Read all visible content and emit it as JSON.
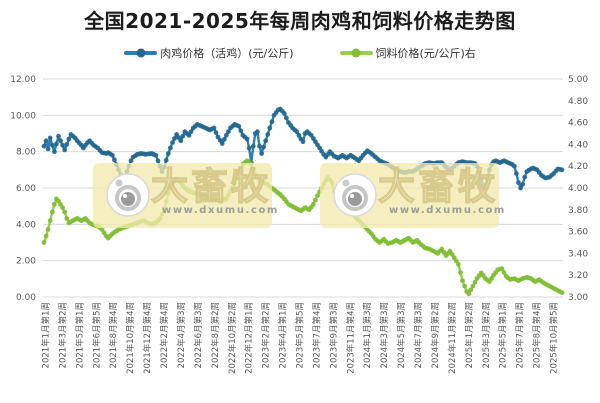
{
  "title": "全国2021-2025年每周肉鸡和饲料价格走势图",
  "legend": {
    "items": [
      {
        "label": "肉鸡价格（活鸡）(元/公斤)",
        "color": "#2E7FAE",
        "marker_color": "#25688F"
      },
      {
        "label": "饲料价格(元/公斤)右",
        "color": "#97CE4F",
        "marker_color": "#7FBE33"
      }
    ]
  },
  "watermark": {
    "brand": "大畜牧",
    "url": "www.dxumu.com"
  },
  "chart_data": {
    "type": "line",
    "title": "全国2021-2025年每周肉鸡和饲料价格走势图",
    "x_unit": "week",
    "weeks": 251,
    "grid": true,
    "legend_position": "top",
    "x_tick_labels": [
      "2021年1月第1周",
      "2021年3月第2周",
      "2021年5月第1周",
      "2021年6月第5周",
      "2021年8月第4周",
      "2021年10月第4周",
      "2021年12月第4周",
      "2022年2月第4周",
      "2022年4月第3周",
      "2022年6月第3周",
      "2022年8月第2周",
      "2022年10月第2周",
      "2022年12月第1周",
      "2023年2月第2周",
      "2023年4月第1周",
      "2023年5月第5周",
      "2023年7月第4周",
      "2023年9月第3周",
      "2023年11月第4周",
      "2024年1月第3周",
      "2024年3月第3周",
      "2024年5月第3周",
      "2024年7月第3周",
      "2024年9月第2周",
      "2024年11月第2周",
      "2025年1月第2周",
      "2025年3月第2周",
      "2025年5月第1周",
      "2025年7月第1周",
      "2025年8月第4周",
      "2025年10月第5周"
    ],
    "left_axis": {
      "min": 0,
      "max": 12,
      "step": 2,
      "tick_labels": [
        "12.00",
        "10.00",
        "8.00",
        "6.00",
        "4.00",
        "2.00",
        "0.00"
      ]
    },
    "right_axis": {
      "min": 3,
      "max": 5,
      "step": 0.2,
      "tick_labels": [
        "5.00",
        "4.80",
        "4.60",
        "4.40",
        "4.20",
        "4.00",
        "3.80",
        "3.60",
        "3.40",
        "3.20",
        "3.00"
      ]
    },
    "series": [
      {
        "name": "肉鸡价格（活鸡）(元/公斤)",
        "axis": "left",
        "color": "#2E7FAE",
        "marker_color": "#25688F",
        "anchors": [
          [
            0,
            8.3
          ],
          [
            1,
            8.6
          ],
          [
            2,
            8.15
          ],
          [
            3,
            8.75
          ],
          [
            4,
            8.35
          ],
          [
            5,
            8.0
          ],
          [
            7,
            8.85
          ],
          [
            9,
            8.35
          ],
          [
            10,
            8.1
          ],
          [
            12,
            8.7
          ],
          [
            13,
            8.95
          ],
          [
            15,
            8.75
          ],
          [
            16,
            8.6
          ],
          [
            18,
            8.35
          ],
          [
            19,
            8.2
          ],
          [
            21,
            8.5
          ],
          [
            22,
            8.6
          ],
          [
            24,
            8.35
          ],
          [
            26,
            8.2
          ],
          [
            28,
            7.95
          ],
          [
            30,
            7.9
          ],
          [
            31,
            7.95
          ],
          [
            33,
            7.8
          ],
          [
            34,
            7.55
          ],
          [
            36,
            7.0
          ],
          [
            38,
            6.45
          ],
          [
            39,
            6.55
          ],
          [
            40,
            6.9
          ],
          [
            42,
            7.5
          ],
          [
            43,
            7.7
          ],
          [
            45,
            7.85
          ],
          [
            47,
            7.9
          ],
          [
            49,
            7.85
          ],
          [
            52,
            7.9
          ],
          [
            54,
            7.8
          ],
          [
            55,
            7.5
          ],
          [
            57,
            6.9
          ],
          [
            58,
            7.15
          ],
          [
            60,
            7.9
          ],
          [
            62,
            8.5
          ],
          [
            64,
            8.95
          ],
          [
            66,
            8.6
          ],
          [
            68,
            9.1
          ],
          [
            70,
            8.9
          ],
          [
            72,
            9.3
          ],
          [
            74,
            9.5
          ],
          [
            76,
            9.4
          ],
          [
            78,
            9.3
          ],
          [
            80,
            9.2
          ],
          [
            82,
            9.3
          ],
          [
            84,
            8.8
          ],
          [
            86,
            8.45
          ],
          [
            88,
            8.9
          ],
          [
            90,
            9.3
          ],
          [
            92,
            9.5
          ],
          [
            94,
            9.4
          ],
          [
            96,
            8.9
          ],
          [
            98,
            8.7
          ],
          [
            99,
            8.2
          ],
          [
            100,
            7.4
          ],
          [
            101,
            8.3
          ],
          [
            102,
            9.0
          ],
          [
            103,
            9.1
          ],
          [
            104,
            8.3
          ],
          [
            105,
            7.9
          ],
          [
            107,
            8.6
          ],
          [
            109,
            9.3
          ],
          [
            111,
            10.0
          ],
          [
            113,
            10.3
          ],
          [
            114,
            10.35
          ],
          [
            116,
            10.1
          ],
          [
            118,
            9.6
          ],
          [
            120,
            9.3
          ],
          [
            122,
            9.1
          ],
          [
            124,
            8.7
          ],
          [
            125,
            8.55
          ],
          [
            126,
            9.0
          ],
          [
            127,
            9.1
          ],
          [
            129,
            8.9
          ],
          [
            131,
            8.55
          ],
          [
            133,
            8.2
          ],
          [
            135,
            7.85
          ],
          [
            136,
            7.7
          ],
          [
            138,
            8.0
          ],
          [
            140,
            7.75
          ],
          [
            142,
            7.65
          ],
          [
            144,
            7.8
          ],
          [
            146,
            7.65
          ],
          [
            148,
            7.8
          ],
          [
            150,
            7.65
          ],
          [
            152,
            7.5
          ],
          [
            154,
            7.8
          ],
          [
            156,
            8.05
          ],
          [
            158,
            7.9
          ],
          [
            160,
            7.7
          ],
          [
            162,
            7.5
          ],
          [
            164,
            7.4
          ],
          [
            166,
            7.3
          ],
          [
            168,
            7.15
          ],
          [
            170,
            7.0
          ],
          [
            172,
            6.9
          ],
          [
            174,
            6.85
          ],
          [
            176,
            6.9
          ],
          [
            178,
            6.9
          ],
          [
            180,
            7.05
          ],
          [
            182,
            7.2
          ],
          [
            184,
            7.35
          ],
          [
            186,
            7.4
          ],
          [
            188,
            7.35
          ],
          [
            190,
            7.4
          ],
          [
            192,
            7.4
          ],
          [
            194,
            7.15
          ],
          [
            196,
            7.0
          ],
          [
            198,
            7.2
          ],
          [
            200,
            7.4
          ],
          [
            202,
            7.45
          ],
          [
            204,
            7.4
          ],
          [
            206,
            7.4
          ],
          [
            208,
            7.35
          ],
          [
            209,
            7.2
          ],
          [
            210,
            6.9
          ],
          [
            211,
            6.5
          ],
          [
            212,
            6.15
          ],
          [
            213,
            6.0
          ],
          [
            214,
            6.5
          ],
          [
            215,
            7.0
          ],
          [
            216,
            7.3
          ],
          [
            217,
            7.45
          ],
          [
            218,
            7.5
          ],
          [
            220,
            7.4
          ],
          [
            222,
            7.5
          ],
          [
            224,
            7.4
          ],
          [
            226,
            7.3
          ],
          [
            227,
            7.2
          ],
          [
            228,
            6.8
          ],
          [
            229,
            6.3
          ],
          [
            230,
            6.0
          ],
          [
            231,
            6.2
          ],
          [
            232,
            6.6
          ],
          [
            233,
            6.9
          ],
          [
            235,
            7.05
          ],
          [
            236,
            7.1
          ],
          [
            238,
            7.0
          ],
          [
            240,
            6.7
          ],
          [
            242,
            6.55
          ],
          [
            244,
            6.6
          ],
          [
            246,
            6.8
          ],
          [
            248,
            7.05
          ],
          [
            250,
            7.0
          ]
        ]
      },
      {
        "name": "饲料价格(元/公斤)右",
        "axis": "right",
        "color": "#97CE4F",
        "marker_color": "#7FBE33",
        "anchors": [
          [
            0,
            3.5
          ],
          [
            1,
            3.56
          ],
          [
            2,
            3.62
          ],
          [
            3,
            3.7
          ],
          [
            4,
            3.78
          ],
          [
            5,
            3.85
          ],
          [
            6,
            3.9
          ],
          [
            7,
            3.88
          ],
          [
            9,
            3.82
          ],
          [
            10,
            3.78
          ],
          [
            11,
            3.72
          ],
          [
            12,
            3.68
          ],
          [
            14,
            3.7
          ],
          [
            16,
            3.72
          ],
          [
            18,
            3.7
          ],
          [
            20,
            3.72
          ],
          [
            22,
            3.68
          ],
          [
            24,
            3.66
          ],
          [
            26,
            3.65
          ],
          [
            28,
            3.62
          ],
          [
            30,
            3.56
          ],
          [
            31,
            3.54
          ],
          [
            33,
            3.58
          ],
          [
            36,
            3.62
          ],
          [
            39,
            3.64
          ],
          [
            42,
            3.66
          ],
          [
            45,
            3.68
          ],
          [
            48,
            3.7
          ],
          [
            50,
            3.68
          ],
          [
            52,
            3.67
          ],
          [
            54,
            3.68
          ],
          [
            56,
            3.72
          ],
          [
            58,
            3.8
          ],
          [
            60,
            3.95
          ],
          [
            62,
            4.05
          ],
          [
            64,
            4.08
          ],
          [
            66,
            4.05
          ],
          [
            68,
            4.0
          ],
          [
            70,
            3.97
          ],
          [
            73,
            3.95
          ],
          [
            76,
            3.93
          ],
          [
            79,
            3.91
          ],
          [
            82,
            3.9
          ],
          [
            85,
            3.89
          ],
          [
            88,
            3.9
          ],
          [
            90,
            3.97
          ],
          [
            92,
            4.04
          ],
          [
            94,
            4.14
          ],
          [
            96,
            4.22
          ],
          [
            98,
            4.25
          ],
          [
            100,
            4.22
          ],
          [
            102,
            4.12
          ],
          [
            104,
            4.07
          ],
          [
            106,
            4.05
          ],
          [
            108,
            4.03
          ],
          [
            110,
            4.0
          ],
          [
            112,
            3.97
          ],
          [
            114,
            3.94
          ],
          [
            116,
            3.9
          ],
          [
            118,
            3.85
          ],
          [
            120,
            3.83
          ],
          [
            122,
            3.81
          ],
          [
            124,
            3.79
          ],
          [
            126,
            3.82
          ],
          [
            128,
            3.8
          ],
          [
            130,
            3.85
          ],
          [
            132,
            3.93
          ],
          [
            134,
            4.0
          ],
          [
            136,
            4.07
          ],
          [
            137,
            4.1
          ],
          [
            139,
            4.05
          ],
          [
            140,
            3.97
          ],
          [
            142,
            3.93
          ],
          [
            144,
            3.9
          ],
          [
            146,
            3.83
          ],
          [
            148,
            3.79
          ],
          [
            150,
            3.74
          ],
          [
            152,
            3.7
          ],
          [
            154,
            3.66
          ],
          [
            156,
            3.62
          ],
          [
            158,
            3.58
          ],
          [
            160,
            3.53
          ],
          [
            162,
            3.5
          ],
          [
            164,
            3.53
          ],
          [
            166,
            3.49
          ],
          [
            168,
            3.5
          ],
          [
            170,
            3.52
          ],
          [
            172,
            3.5
          ],
          [
            174,
            3.52
          ],
          [
            176,
            3.54
          ],
          [
            178,
            3.5
          ],
          [
            180,
            3.52
          ],
          [
            182,
            3.48
          ],
          [
            184,
            3.45
          ],
          [
            186,
            3.44
          ],
          [
            188,
            3.42
          ],
          [
            190,
            3.4
          ],
          [
            192,
            3.44
          ],
          [
            194,
            3.38
          ],
          [
            196,
            3.42
          ],
          [
            198,
            3.36
          ],
          [
            200,
            3.3
          ],
          [
            202,
            3.15
          ],
          [
            204,
            3.05
          ],
          [
            205,
            3.03
          ],
          [
            207,
            3.1
          ],
          [
            209,
            3.17
          ],
          [
            211,
            3.22
          ],
          [
            213,
            3.17
          ],
          [
            215,
            3.14
          ],
          [
            217,
            3.2
          ],
          [
            219,
            3.25
          ],
          [
            221,
            3.26
          ],
          [
            223,
            3.19
          ],
          [
            225,
            3.16
          ],
          [
            227,
            3.17
          ],
          [
            229,
            3.15
          ],
          [
            231,
            3.17
          ],
          [
            233,
            3.18
          ],
          [
            235,
            3.17
          ],
          [
            237,
            3.14
          ],
          [
            239,
            3.16
          ],
          [
            241,
            3.13
          ],
          [
            243,
            3.11
          ],
          [
            245,
            3.09
          ],
          [
            247,
            3.07
          ],
          [
            249,
            3.05
          ],
          [
            250,
            3.04
          ]
        ]
      }
    ]
  }
}
